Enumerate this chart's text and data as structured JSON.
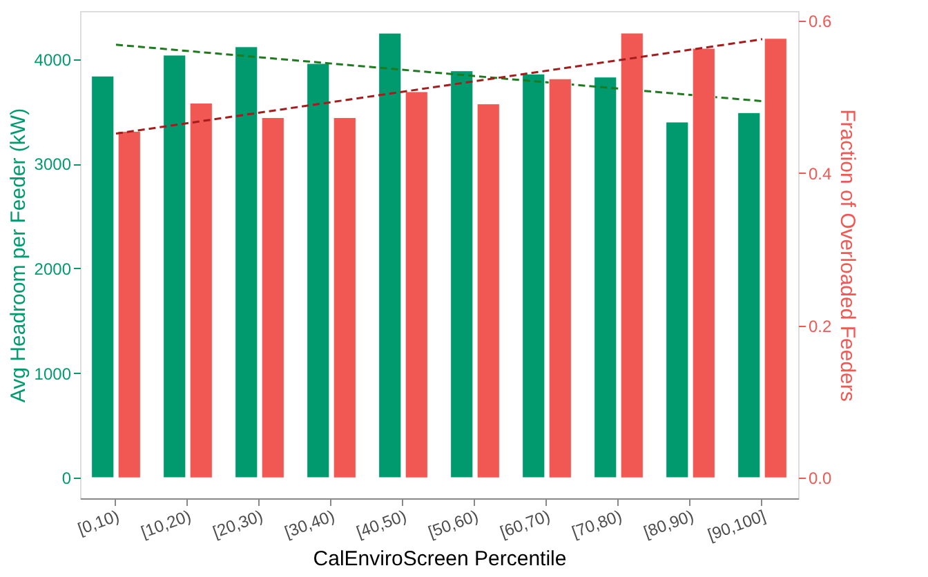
{
  "chart_data": {
    "type": "bar",
    "categories": [
      "[0,10)",
      "[10,20)",
      "[20,30)",
      "[30,40)",
      "[40,50)",
      "[50,60)",
      "[60,70)",
      "[70,80)",
      "[80,90)",
      "[90,100]"
    ],
    "xlabel": "CalEnviroScreen Percentile",
    "ylabel": "Avg Headroom per Feeder (kW)",
    "y2label": "Fraction of Overloaded Feeders",
    "series": [
      {
        "color": "#009a6e",
        "axis": "y",
        "values": [
          3840,
          4040,
          4120,
          3960,
          4250,
          3890,
          3860,
          3830,
          3400,
          3490
        ]
      },
      {
        "color": "#f15854",
        "axis": "y2",
        "values": [
          0.455,
          0.492,
          0.473,
          0.473,
          0.507,
          0.491,
          0.524,
          0.584,
          0.564,
          0.577
        ]
      },
      {
        "type": "line",
        "line_style": "dashed",
        "color": "#1e7a1e",
        "axis": "y",
        "x": [
          "[0,10)",
          "[90,100]"
        ],
        "values": [
          4140,
          3600
        ]
      },
      {
        "type": "line",
        "line_style": "dashed",
        "color": "#a51c1c",
        "axis": "y2",
        "x": [
          "[0,10)",
          "[90,100]"
        ],
        "values": [
          0.452,
          0.576
        ]
      }
    ],
    "ylim": [
      -198,
      4462
    ],
    "yticks": [
      0,
      1000,
      2000,
      3000,
      4000
    ],
    "y2lim": [
      -0.027,
      0.613
    ],
    "y2ticks": [
      {
        "value": 0,
        "label": "0.0"
      },
      0.2,
      0.4,
      0.6
    ],
    "grid": false
  }
}
